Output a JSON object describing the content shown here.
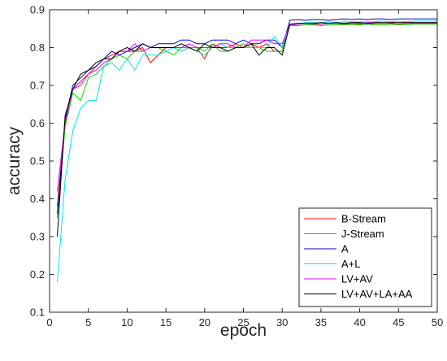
{
  "chart_data": {
    "type": "line",
    "title": "",
    "xlabel": "epoch",
    "ylabel": "accuracy",
    "xlim": [
      0,
      50
    ],
    "ylim": [
      0.1,
      0.9
    ],
    "xticks": [
      "0",
      "5",
      "10",
      "15",
      "20",
      "25",
      "30",
      "35",
      "40",
      "45",
      "50"
    ],
    "yticks": [
      "0.1",
      "0.2",
      "0.3",
      "0.4",
      "0.5",
      "0.6",
      "0.7",
      "0.8",
      "0.9"
    ],
    "grid": false,
    "legend_position": "bottom-right",
    "x": [
      1,
      2,
      3,
      4,
      5,
      6,
      7,
      8,
      9,
      10,
      11,
      12,
      13,
      14,
      15,
      16,
      17,
      18,
      19,
      20,
      21,
      22,
      23,
      24,
      25,
      26,
      27,
      28,
      29,
      30,
      31,
      32,
      33,
      34,
      35,
      36,
      37,
      38,
      39,
      40,
      41,
      42,
      43,
      44,
      45,
      46,
      47,
      48,
      49,
      50
    ],
    "series": [
      {
        "name": "B-Stream",
        "color": "#ff0000",
        "values": [
          0.38,
          0.6,
          0.69,
          0.71,
          0.73,
          0.75,
          0.77,
          0.78,
          0.79,
          0.79,
          0.79,
          0.8,
          0.76,
          0.78,
          0.8,
          0.8,
          0.79,
          0.8,
          0.8,
          0.77,
          0.81,
          0.8,
          0.8,
          0.81,
          0.8,
          0.81,
          0.8,
          0.81,
          0.79,
          0.79,
          0.86,
          0.862,
          0.864,
          0.862,
          0.862,
          0.864,
          0.864,
          0.862,
          0.864,
          0.862,
          0.862,
          0.864,
          0.864,
          0.864,
          0.862,
          0.864,
          0.864,
          0.864,
          0.864,
          0.864
        ]
      },
      {
        "name": "J-Stream",
        "color": "#00dd00",
        "values": [
          0.35,
          0.59,
          0.68,
          0.66,
          0.72,
          0.73,
          0.75,
          0.77,
          0.78,
          0.77,
          0.79,
          0.79,
          0.8,
          0.8,
          0.79,
          0.78,
          0.8,
          0.8,
          0.8,
          0.79,
          0.81,
          0.79,
          0.79,
          0.8,
          0.81,
          0.8,
          0.8,
          0.79,
          0.79,
          0.79,
          0.858,
          0.858,
          0.86,
          0.86,
          0.858,
          0.86,
          0.86,
          0.86,
          0.86,
          0.86,
          0.862,
          0.86,
          0.86,
          0.862,
          0.86,
          0.86,
          0.862,
          0.862,
          0.862,
          0.862
        ]
      },
      {
        "name": "A",
        "color": "#0000cc",
        "values": [
          0.36,
          0.61,
          0.7,
          0.72,
          0.74,
          0.75,
          0.77,
          0.79,
          0.78,
          0.79,
          0.8,
          0.81,
          0.8,
          0.81,
          0.81,
          0.81,
          0.82,
          0.82,
          0.81,
          0.81,
          0.82,
          0.82,
          0.82,
          0.81,
          0.82,
          0.81,
          0.81,
          0.82,
          0.82,
          0.8,
          0.872,
          0.874,
          0.872,
          0.874,
          0.874,
          0.872,
          0.874,
          0.876,
          0.874,
          0.876,
          0.874,
          0.876,
          0.876,
          0.874,
          0.876,
          0.876,
          0.876,
          0.876,
          0.876,
          0.876
        ]
      },
      {
        "name": "A+L",
        "color": "#00e5ee",
        "values": [
          0.18,
          0.45,
          0.58,
          0.64,
          0.66,
          0.66,
          0.75,
          0.76,
          0.74,
          0.77,
          0.74,
          0.78,
          0.78,
          0.78,
          0.79,
          0.8,
          0.79,
          0.8,
          0.79,
          0.78,
          0.8,
          0.81,
          0.8,
          0.8,
          0.8,
          0.8,
          0.8,
          0.8,
          0.83,
          0.8,
          0.858,
          0.862,
          0.866,
          0.866,
          0.866,
          0.868,
          0.866,
          0.868,
          0.868,
          0.868,
          0.868,
          0.868,
          0.87,
          0.868,
          0.87,
          0.868,
          0.87,
          0.87,
          0.87,
          0.87
        ]
      },
      {
        "name": "LV+AV",
        "color": "#ee00ee",
        "values": [
          0.42,
          0.6,
          0.69,
          0.7,
          0.73,
          0.74,
          0.76,
          0.77,
          0.79,
          0.79,
          0.81,
          0.79,
          0.8,
          0.8,
          0.8,
          0.8,
          0.8,
          0.81,
          0.8,
          0.8,
          0.8,
          0.81,
          0.81,
          0.8,
          0.8,
          0.82,
          0.82,
          0.82,
          0.81,
          0.81,
          0.86,
          0.862,
          0.864,
          0.864,
          0.862,
          0.864,
          0.864,
          0.864,
          0.866,
          0.864,
          0.866,
          0.866,
          0.864,
          0.866,
          0.866,
          0.866,
          0.866,
          0.866,
          0.866,
          0.866
        ]
      },
      {
        "name": "LV+AV+LA+AA",
        "color": "#000000",
        "values": [
          0.3,
          0.62,
          0.69,
          0.73,
          0.74,
          0.76,
          0.77,
          0.77,
          0.79,
          0.8,
          0.79,
          0.81,
          0.8,
          0.8,
          0.8,
          0.8,
          0.81,
          0.8,
          0.79,
          0.81,
          0.8,
          0.8,
          0.79,
          0.8,
          0.8,
          0.81,
          0.78,
          0.8,
          0.8,
          0.78,
          0.862,
          0.864,
          0.864,
          0.864,
          0.866,
          0.864,
          0.866,
          0.864,
          0.866,
          0.866,
          0.864,
          0.866,
          0.866,
          0.866,
          0.866,
          0.866,
          0.866,
          0.866,
          0.866,
          0.866
        ]
      }
    ]
  }
}
